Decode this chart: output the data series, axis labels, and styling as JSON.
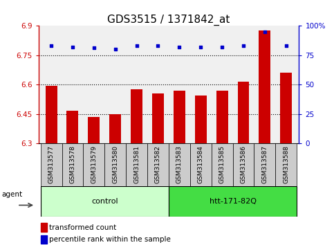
{
  "title": "GDS3515 / 1371842_at",
  "samples": [
    "GSM313577",
    "GSM313578",
    "GSM313579",
    "GSM313580",
    "GSM313581",
    "GSM313582",
    "GSM313583",
    "GSM313584",
    "GSM313585",
    "GSM313586",
    "GSM313587",
    "GSM313588"
  ],
  "bar_values": [
    6.595,
    6.465,
    6.435,
    6.45,
    6.575,
    6.555,
    6.57,
    6.545,
    6.57,
    6.615,
    6.875,
    6.66
  ],
  "percentile_values": [
    83,
    82,
    81,
    80,
    83,
    83,
    82,
    82,
    82,
    83,
    95,
    83
  ],
  "bar_color": "#cc0000",
  "dot_color": "#0000cc",
  "ylim_left": [
    6.3,
    6.9
  ],
  "ylim_right": [
    0,
    100
  ],
  "yticks_left": [
    6.3,
    6.45,
    6.6,
    6.75,
    6.9
  ],
  "ytick_labels_left": [
    "6.3",
    "6.45",
    "6.6",
    "6.75",
    "6.9"
  ],
  "yticks_right": [
    0,
    25,
    50,
    75,
    100
  ],
  "ytick_labels_right": [
    "0",
    "25",
    "50",
    "75",
    "100%"
  ],
  "hlines": [
    6.45,
    6.6,
    6.75
  ],
  "group_control_label": "control",
  "group_htt_label": "htt-171-82Q",
  "agent_label": "agent",
  "legend_bar_label": "transformed count",
  "legend_dot_label": "percentile rank within the sample",
  "bar_width": 0.55,
  "plot_bg": "#f0f0f0",
  "sample_box_color": "#cccccc",
  "group_control_color": "#ccffcc",
  "group_htt_color": "#44dd44",
  "agent_box_color": "#ccffcc",
  "title_fontsize": 11,
  "tick_fontsize": 7.5,
  "left_color": "#cc0000",
  "right_color": "#0000cc",
  "legend_fontsize": 7.5,
  "group_fontsize": 8,
  "sample_fontsize": 6.5
}
